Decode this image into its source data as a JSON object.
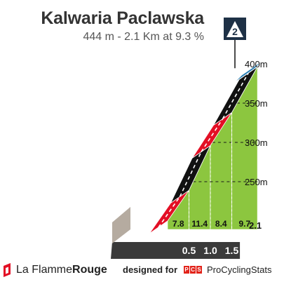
{
  "header": {
    "title": "Kalwaria Paclawska",
    "subtitle": "444 m - 2.1 Km at 9.3 %"
  },
  "chart_data": {
    "type": "area",
    "title": "Kalwaria Paclawska",
    "subtitle": "444 m - 2.1 Km at 9.3 %",
    "category_marker": "2",
    "x_unit": "km",
    "y_unit": "m",
    "ylim": [
      200,
      444
    ],
    "total_distance_label": "2.1",
    "x_ticks": [
      {
        "km": 0.5,
        "label": "0.5"
      },
      {
        "km": 1.0,
        "label": "1.0"
      },
      {
        "km": 1.5,
        "label": "1.5"
      }
    ],
    "y_ticks": [
      {
        "value": 250,
        "label": "250m"
      },
      {
        "value": 300,
        "label": "300m"
      },
      {
        "value": 350,
        "label": "350m"
      },
      {
        "value": 400,
        "label": "400m"
      }
    ],
    "segments": [
      {
        "start_km": 0.0,
        "end_km": 0.5,
        "gradient": 7.8,
        "label": "7.8"
      },
      {
        "start_km": 0.5,
        "end_km": 1.0,
        "gradient": 11.4,
        "label": "11.4"
      },
      {
        "start_km": 1.0,
        "end_km": 1.5,
        "gradient": 8.4,
        "label": "8.4"
      },
      {
        "start_km": 1.5,
        "end_km": 2.1,
        "gradient": 9.7,
        "label": "9.7"
      }
    ],
    "road_colors": [
      "#e30f25",
      "#111111",
      "#e30f25",
      "#111111"
    ],
    "colors": {
      "side": "#8cc63f",
      "base_front": "#3a3a3a",
      "base_side": "#b5aba0",
      "marker_box": "#1e3146",
      "summit": "#2b7fb4"
    }
  },
  "footer": {
    "brand_prefix": "La Flamme",
    "brand_suffix": "Rouge",
    "designed_for": "designed for",
    "pcs_letters": [
      "P",
      "C",
      "S"
    ],
    "pcs_name": "ProCyclingStats"
  }
}
